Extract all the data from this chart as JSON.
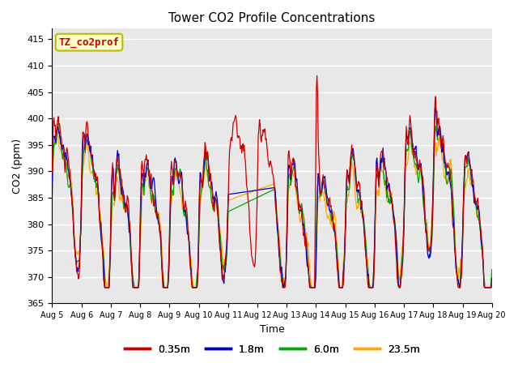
{
  "title": "Tower CO2 Profile Concentrations",
  "xlabel": "Time",
  "ylabel": "CO2 (ppm)",
  "ylim": [
    365,
    417
  ],
  "yticks": [
    365,
    370,
    375,
    380,
    385,
    390,
    395,
    400,
    405,
    410,
    415
  ],
  "series_labels": [
    "0.35m",
    "1.8m",
    "6.0m",
    "23.5m"
  ],
  "series_colors": [
    "#cc0000",
    "#0000cc",
    "#00aa00",
    "#ffaa00"
  ],
  "legend_label": "TZ_co2prof",
  "legend_bg": "#ffffcc",
  "legend_edge": "#bbbb00",
  "plot_bg": "#e8e8e8",
  "n_days": 15,
  "start_day": 5,
  "points_per_day": 48,
  "seed": 7
}
